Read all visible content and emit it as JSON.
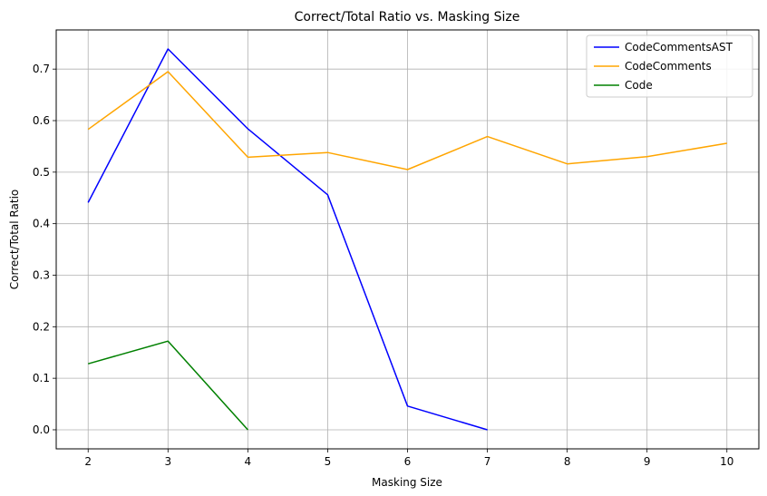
{
  "chart_data": {
    "type": "line",
    "title": "Correct/Total Ratio vs. Masking Size",
    "xlabel": "Masking Size",
    "ylabel": "Correct/Total Ratio",
    "xlim": [
      1.6,
      10.4
    ],
    "ylim": [
      -0.037,
      0.776
    ],
    "xticks": [
      "2",
      "3",
      "4",
      "5",
      "6",
      "7",
      "8",
      "9",
      "10"
    ],
    "yticks": [
      "0.0",
      "0.1",
      "0.2",
      "0.3",
      "0.4",
      "0.5",
      "0.6",
      "0.7"
    ],
    "grid": true,
    "legend_position": "top-right",
    "series": [
      {
        "name": "CodeCommentsAST",
        "color": "#0000ff",
        "x": [
          2,
          3,
          4,
          5,
          6,
          7
        ],
        "y": [
          0.441,
          0.739,
          0.584,
          0.456,
          0.046,
          0.0
        ]
      },
      {
        "name": "CodeComments",
        "color": "#ffa500",
        "x": [
          2,
          3,
          4,
          5,
          6,
          7,
          8,
          9,
          10
        ],
        "y": [
          0.583,
          0.695,
          0.529,
          0.538,
          0.505,
          0.569,
          0.516,
          0.53,
          0.556
        ]
      },
      {
        "name": "Code",
        "color": "#008000",
        "x": [
          2,
          3,
          4
        ],
        "y": [
          0.128,
          0.172,
          0.0
        ]
      }
    ]
  }
}
